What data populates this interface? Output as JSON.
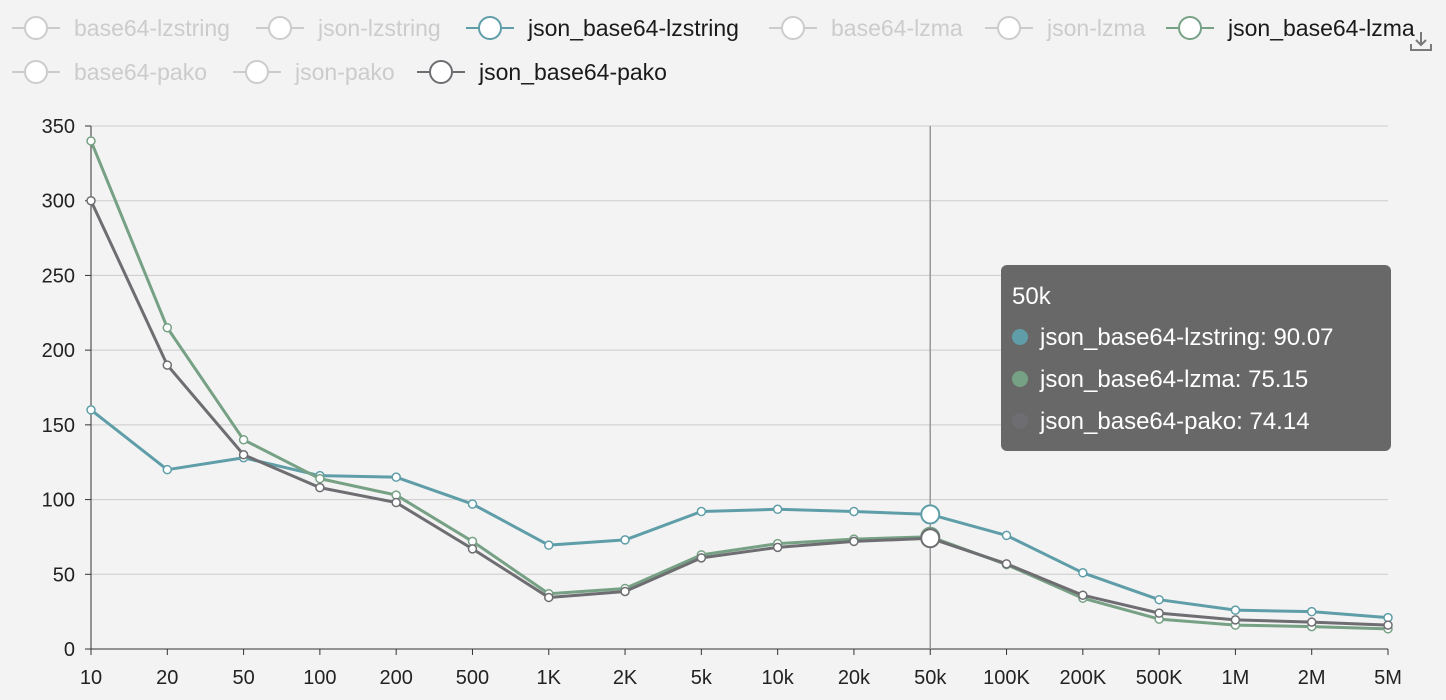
{
  "chart_data": {
    "type": "line",
    "categories": [
      "10",
      "20",
      "50",
      "100",
      "200",
      "500",
      "1K",
      "2K",
      "5k",
      "10k",
      "20k",
      "50k",
      "100K",
      "200K",
      "500K",
      "1M",
      "2M",
      "5M"
    ],
    "ylim": [
      0,
      350
    ],
    "yticks": [
      "0",
      "50",
      "100",
      "150",
      "200",
      "250",
      "300",
      "350"
    ],
    "grid": true,
    "legend_position": "top",
    "legend": [
      {
        "name": "base64-lzstring",
        "active": false
      },
      {
        "name": "json-lzstring",
        "active": false
      },
      {
        "name": "json_base64-lzstring",
        "active": true,
        "color": "#5f9ea8"
      },
      {
        "name": "base64-lzma",
        "active": false
      },
      {
        "name": "json-lzma",
        "active": false
      },
      {
        "name": "json_base64-lzma",
        "active": true,
        "color": "#77a185"
      },
      {
        "name": "base64-pako",
        "active": false
      },
      {
        "name": "json-pako",
        "active": false
      },
      {
        "name": "json_base64-pako",
        "active": true,
        "color": "#6e6e72"
      }
    ],
    "series": [
      {
        "name": "json_base64-lzstring",
        "color": "#5f9ea8",
        "values": [
          160,
          120,
          128,
          116,
          115,
          97,
          69.5,
          73,
          92,
          93.5,
          92,
          90.07,
          76,
          51,
          33,
          26,
          25,
          21
        ]
      },
      {
        "name": "json_base64-lzma",
        "color": "#77a185",
        "values": [
          340,
          215,
          140,
          114,
          103,
          72,
          37,
          40.5,
          63,
          70.5,
          73.5,
          75.15,
          56.5,
          34,
          20,
          16,
          15,
          13.5
        ]
      },
      {
        "name": "json_base64-pako",
        "color": "#6e6e72",
        "values": [
          300,
          190,
          130,
          108,
          98,
          67,
          34.5,
          38.5,
          61,
          68,
          72,
          74.14,
          57,
          36,
          24,
          19.5,
          18,
          16
        ]
      }
    ],
    "highlight_index": 11,
    "tooltip": {
      "title": "50k",
      "rows": [
        {
          "label": "json_base64-lzstring: 90.07",
          "color": "#5f9ea8"
        },
        {
          "label": "json_base64-lzma: 75.15",
          "color": "#77a185"
        },
        {
          "label": "json_base64-pako: 74.14",
          "color": "#6e6e72"
        }
      ]
    }
  },
  "toolbar": {
    "save_icon": "download-icon"
  },
  "colors": {
    "background": "#f3f3f3",
    "grid": "#cccccc",
    "inactive": "#cccccc",
    "tooltip_bg": "#686868",
    "axis": "#333333"
  }
}
